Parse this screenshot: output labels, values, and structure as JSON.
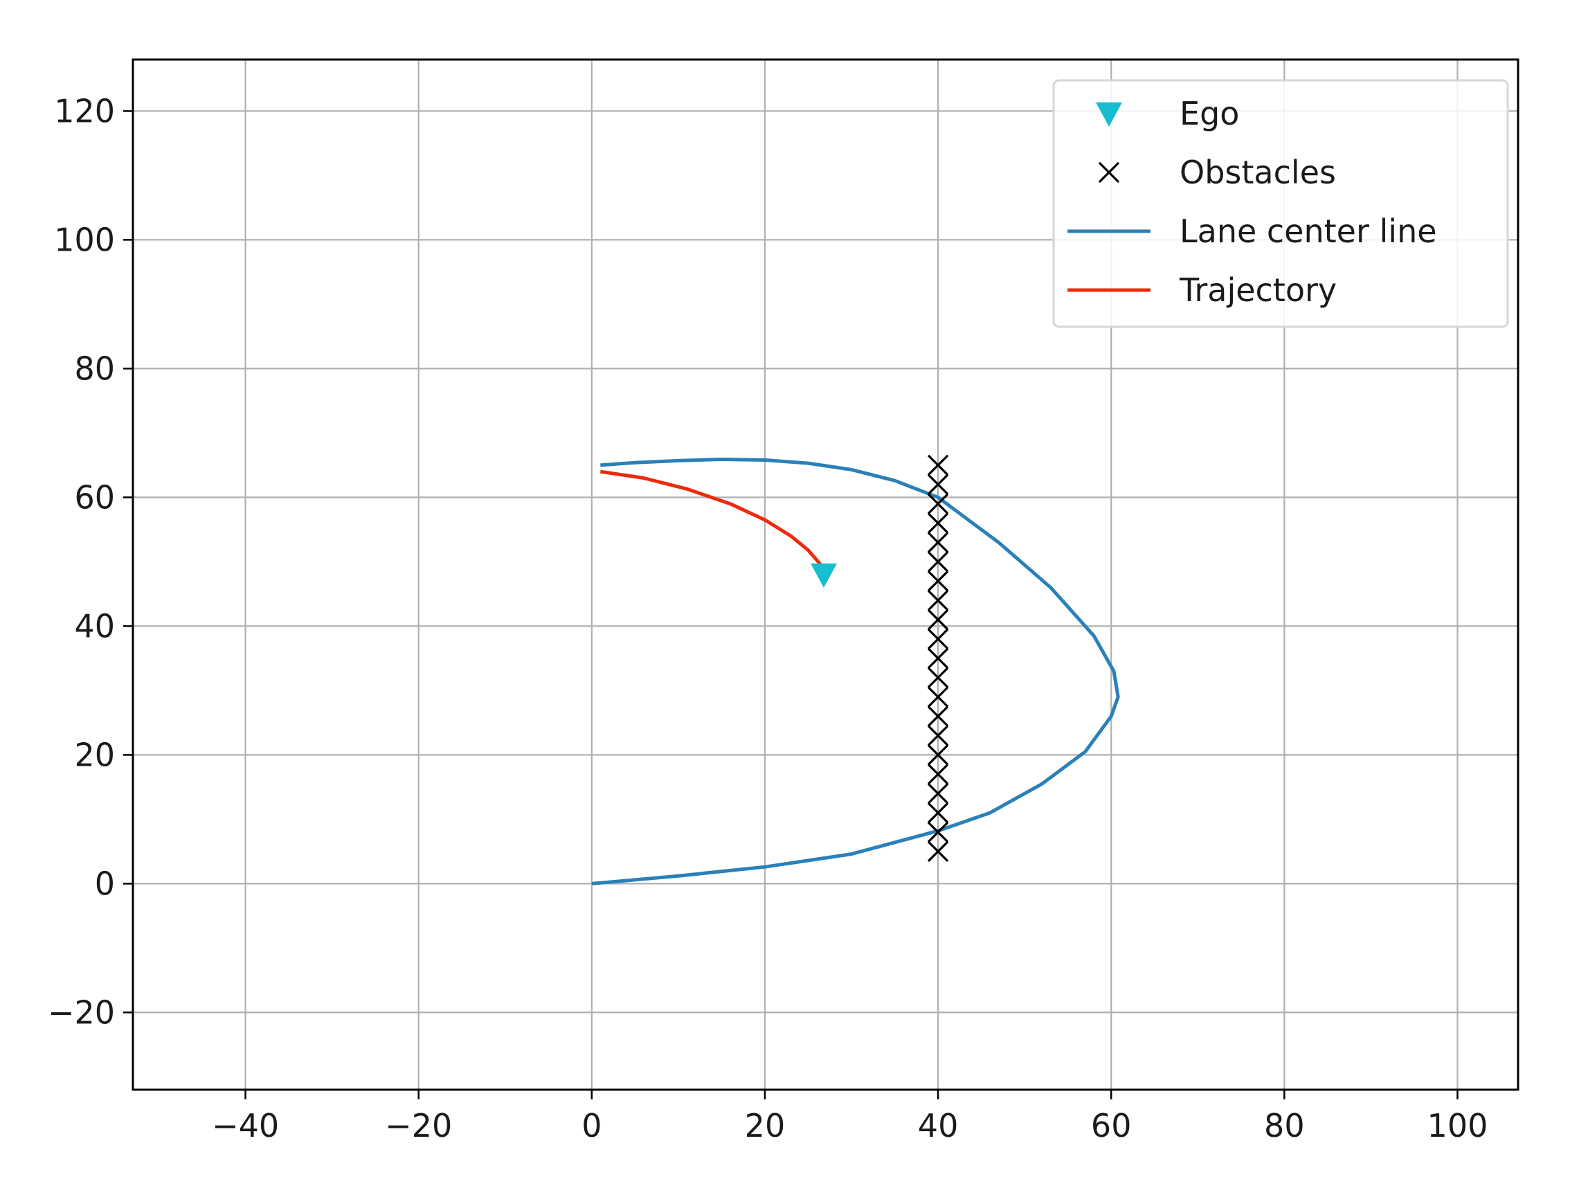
{
  "chart_data": {
    "type": "line",
    "title": "",
    "xlabel": "",
    "ylabel": "",
    "xlim": [
      -53,
      107
    ],
    "ylim": [
      -32,
      128
    ],
    "grid": true,
    "xticks": [
      -40,
      -20,
      0,
      20,
      40,
      60,
      80,
      100
    ],
    "yticks": [
      -20,
      0,
      20,
      40,
      60,
      80,
      100,
      120
    ],
    "xtick_labels": [
      "−40",
      "−20",
      "0",
      "20",
      "40",
      "60",
      "80",
      "100"
    ],
    "ytick_labels": [
      "−20",
      "0",
      "20",
      "40",
      "60",
      "80",
      "100",
      "120"
    ],
    "legend_position": "top-right",
    "series": [
      {
        "name": "Ego",
        "kind": "marker",
        "marker": "triangle-down",
        "color": "#17becf",
        "points": [
          [
            26.8,
            48
          ]
        ]
      },
      {
        "name": "Obstacles",
        "kind": "marker",
        "marker": "x",
        "color": "#000000",
        "points": [
          [
            40,
            5
          ],
          [
            40,
            8
          ],
          [
            40,
            11
          ],
          [
            40,
            14
          ],
          [
            40,
            17
          ],
          [
            40,
            20
          ],
          [
            40,
            23
          ],
          [
            40,
            26
          ],
          [
            40,
            29
          ],
          [
            40,
            32
          ],
          [
            40,
            35
          ],
          [
            40,
            38
          ],
          [
            40,
            41
          ],
          [
            40,
            44
          ],
          [
            40,
            47
          ],
          [
            40,
            50
          ],
          [
            40,
            53
          ],
          [
            40,
            56
          ],
          [
            40,
            59
          ],
          [
            40,
            62
          ],
          [
            40,
            65
          ]
        ]
      },
      {
        "name": "Lane center line",
        "kind": "line",
        "color": "#2a80b9",
        "points": [
          [
            0,
            0
          ],
          [
            10,
            1.2
          ],
          [
            20,
            2.6
          ],
          [
            30,
            4.6
          ],
          [
            40,
            8.2
          ],
          [
            46,
            11
          ],
          [
            52,
            15.5
          ],
          [
            57,
            20.5
          ],
          [
            60,
            26
          ],
          [
            60.8,
            29
          ],
          [
            60.3,
            33
          ],
          [
            58,
            38.5
          ],
          [
            53,
            46
          ],
          [
            47,
            53
          ],
          [
            40,
            60
          ],
          [
            35,
            62.6
          ],
          [
            30,
            64.3
          ],
          [
            25,
            65.3
          ],
          [
            20,
            65.8
          ],
          [
            15,
            65.9
          ],
          [
            10,
            65.7
          ],
          [
            5,
            65.4
          ],
          [
            1,
            65
          ]
        ]
      },
      {
        "name": "Trajectory",
        "kind": "line",
        "color": "#ee2a0c",
        "points": [
          [
            1,
            64
          ],
          [
            6,
            63
          ],
          [
            11,
            61.3
          ],
          [
            16,
            59
          ],
          [
            20,
            56.5
          ],
          [
            23,
            54
          ],
          [
            25,
            51.8
          ],
          [
            26.8,
            49
          ]
        ]
      }
    ]
  }
}
